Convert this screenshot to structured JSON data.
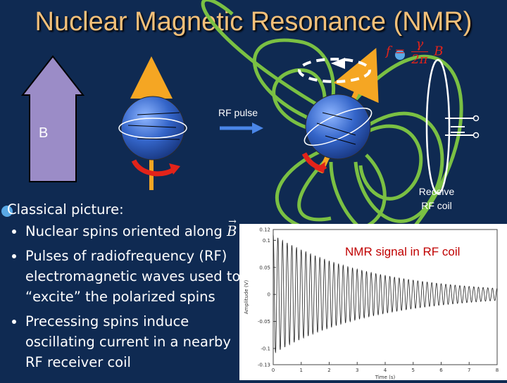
{
  "title": "Nuclear Magnetic Resonance (NMR)",
  "formula": {
    "lhs": "f",
    "eq": "=",
    "numerator": "γ",
    "denominator": "2π",
    "rhs": "B"
  },
  "labels": {
    "b_field": "B",
    "rf_pulse": "RF pulse",
    "receive_coil_line1": "Receive",
    "receive_coil_line2": "RF coil"
  },
  "text": {
    "heading": "Classical picture:",
    "bullet1_prefix": "Nuclear spins oriented along ",
    "bullet1_vector": "B",
    "bullet2": "Pulses of radiofrequency (RF) electromagnetic waves used to “excite” the polarized spins",
    "bullet3": "Precessing spins induce oscillating current in a nearby RF receiver coil"
  },
  "colors": {
    "background": "#0f2a52",
    "title": "#f3c07a",
    "field_lines": "#7ac043",
    "spin_arrow": "#f5a623",
    "b_arrow": "#9b8cc7",
    "rotation": "#e2231a",
    "rf_arrow": "#4a86e8"
  },
  "chart_data": {
    "type": "line",
    "title": "NMR signal in RF coil",
    "xlabel": "Time (s)",
    "ylabel": "Amplitude (V)",
    "xlim": [
      0,
      8
    ],
    "ylim": [
      -0.13,
      0.12
    ],
    "x_ticks": [
      "0",
      "1",
      "2",
      "3",
      "4",
      "5",
      "6",
      "7",
      "8"
    ],
    "y_ticks": [
      "0.12",
      "0.1",
      "0.05",
      "0",
      "-0.05",
      "-0.1",
      "-0.13"
    ],
    "signal": {
      "initial_amplitude": 0.11,
      "decay_time_constant": 3.5,
      "cycles": 48
    }
  }
}
